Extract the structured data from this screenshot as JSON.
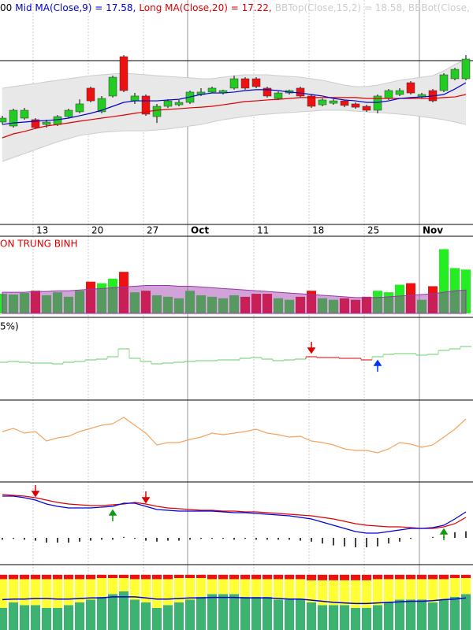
{
  "chart_data": [
    {
      "type": "candlestick",
      "title": "00",
      "categories": [
        null,
        null,
        null,
        "13",
        null,
        null,
        null,
        null,
        "20",
        null,
        null,
        null,
        null,
        "27",
        null,
        null,
        null,
        "Oct",
        null,
        null,
        null,
        null,
        null,
        "11",
        null,
        null,
        null,
        null,
        "18",
        null,
        null,
        null,
        null,
        "25",
        null,
        null,
        null,
        null,
        "Nov",
        null,
        null,
        null,
        null
      ],
      "open": [
        16.12,
        15.94,
        16.3,
        16.23,
        16.01,
        16.01,
        16.37,
        16.59,
        17.67,
        16.59,
        17.31,
        19.11,
        17.09,
        17.31,
        16.37,
        16.84,
        16.91,
        17.02,
        17.38,
        17.49,
        17.45,
        17.67,
        18.1,
        18.1,
        17.67,
        17.2,
        17.45,
        17.67,
        17.31,
        16.91,
        16.98,
        17.09,
        16.95,
        16.84,
        16.66,
        17.2,
        17.38,
        17.92,
        17.27,
        17.56,
        17.56,
        18.1,
        18.1
      ],
      "high": [
        16.41,
        16.73,
        16.77,
        16.3,
        16.23,
        16.44,
        16.73,
        17.16,
        17.74,
        17.31,
        18.24,
        19.18,
        17.45,
        17.38,
        16.95,
        17.16,
        17.13,
        17.56,
        17.67,
        17.74,
        17.6,
        18.24,
        18.17,
        18.17,
        17.74,
        17.52,
        17.6,
        17.74,
        17.38,
        17.2,
        17.16,
        17.13,
        17.02,
        16.91,
        17.38,
        17.63,
        17.67,
        17.99,
        17.45,
        17.63,
        18.35,
        18.6,
        19.18
      ],
      "low": [
        16.01,
        15.87,
        16.23,
        15.8,
        15.87,
        15.94,
        16.3,
        16.52,
        17.02,
        16.52,
        17.24,
        17.49,
        16.95,
        16.41,
        16.08,
        16.77,
        16.84,
        16.95,
        17.31,
        17.45,
        17.38,
        17.6,
        17.6,
        17.67,
        17.24,
        17.13,
        17.38,
        17.24,
        16.77,
        16.84,
        16.91,
        16.8,
        16.73,
        16.59,
        16.52,
        17.13,
        17.31,
        17.38,
        17.2,
        17.02,
        17.49,
        18.03,
        18.03
      ],
      "close": [
        16.3,
        16.66,
        16.66,
        15.87,
        16.12,
        16.37,
        16.66,
        16.95,
        17.09,
        17.2,
        18.17,
        17.56,
        17.31,
        16.48,
        16.84,
        17.09,
        17.02,
        17.49,
        17.49,
        17.67,
        17.56,
        18.1,
        17.67,
        17.74,
        17.31,
        17.45,
        17.56,
        17.31,
        16.84,
        17.13,
        17.09,
        16.88,
        16.8,
        16.66,
        17.31,
        17.56,
        17.56,
        17.45,
        17.38,
        17.09,
        18.28,
        18.53,
        19.0
      ],
      "up_color": "#22cc22",
      "down_color": "#ee1111",
      "ylim": [
        11.44,
        21.7
      ],
      "band_fill": "#e8e8e8",
      "series": [
        {
          "name": "Mid MA(Close,9) = 17.58,",
          "color": "#0000cc",
          "values": [
            16.01,
            16.08,
            16.12,
            16.16,
            16.19,
            16.23,
            16.3,
            16.41,
            16.52,
            16.66,
            16.84,
            17.02,
            17.09,
            17.09,
            17.09,
            17.13,
            17.16,
            17.27,
            17.38,
            17.45,
            17.45,
            17.49,
            17.56,
            17.6,
            17.6,
            17.56,
            17.49,
            17.45,
            17.38,
            17.31,
            17.2,
            17.13,
            17.09,
            17.02,
            17.02,
            17.09,
            17.2,
            17.24,
            17.27,
            17.31,
            17.38,
            17.63,
            17.92
          ]
        },
        {
          "name": "Long MA(Close,20) = 17.22,",
          "color": "#dd0000",
          "values": [
            15.4,
            15.58,
            15.69,
            15.83,
            15.94,
            16.01,
            16.08,
            16.16,
            16.23,
            16.3,
            16.37,
            16.44,
            16.52,
            16.59,
            16.66,
            16.7,
            16.73,
            16.77,
            16.8,
            16.84,
            16.91,
            16.98,
            17.06,
            17.09,
            17.13,
            17.16,
            17.2,
            17.24,
            17.24,
            17.24,
            17.24,
            17.24,
            17.24,
            17.2,
            17.2,
            17.2,
            17.2,
            17.2,
            17.2,
            17.2,
            17.24,
            17.27,
            17.38
          ]
        },
        {
          "name": "BBTop(Close,15,2) = 18.58,",
          "color": "#cccccc",
          "values": [
            17.67,
            17.74,
            17.81,
            17.88,
            17.96,
            18.03,
            18.1,
            18.17,
            18.24,
            18.28,
            18.32,
            18.35,
            18.32,
            18.28,
            18.24,
            18.21,
            18.17,
            18.14,
            18.1,
            18.1,
            18.17,
            18.24,
            18.28,
            18.28,
            18.28,
            18.24,
            18.21,
            18.17,
            18.1,
            18.03,
            17.92,
            17.81,
            17.74,
            17.74,
            17.81,
            17.92,
            18.03,
            18.1,
            18.17,
            18.24,
            18.46,
            18.75,
            19.0
          ]
        },
        {
          "name": "BBBot(Close,",
          "color": "#cccccc",
          "values": [
            14.32,
            14.5,
            14.68,
            14.86,
            15.04,
            15.22,
            15.36,
            15.51,
            15.58,
            15.65,
            15.69,
            15.72,
            15.72,
            15.72,
            15.76,
            15.8,
            15.87,
            15.94,
            16.01,
            16.12,
            16.23,
            16.3,
            16.37,
            16.44,
            16.48,
            16.52,
            16.55,
            16.59,
            16.62,
            16.66,
            16.66,
            16.66,
            16.62,
            16.59,
            16.55,
            16.52,
            16.48,
            16.44,
            16.37,
            16.3,
            16.23,
            16.12,
            16.01
          ]
        }
      ]
    },
    {
      "type": "bar",
      "title": "ON TRUNG BINH",
      "title_color": "#dd0000",
      "values": [
        26,
        25,
        27,
        30,
        24,
        28,
        22,
        30,
        42,
        40,
        46,
        55,
        28,
        30,
        24,
        22,
        20,
        30,
        24,
        22,
        20,
        24,
        22,
        26,
        26,
        20,
        18,
        22,
        30,
        20,
        18,
        20,
        18,
        22,
        30,
        28,
        38,
        40,
        18,
        36,
        85,
        60,
        58
      ],
      "up_color": "#22ee22",
      "down_color": "#ee1111",
      "ma_values": [
        28,
        28,
        28,
        29,
        29,
        30,
        30,
        31,
        32,
        33,
        34,
        35,
        36,
        37,
        37,
        37,
        36,
        36,
        35,
        34,
        33,
        32,
        31,
        30,
        29,
        28,
        27,
        26,
        25,
        24,
        23,
        22,
        21,
        21,
        21,
        22,
        23,
        24,
        25,
        26,
        28,
        30,
        31
      ],
      "ma_color": "#9933aa",
      "ylim": [
        0,
        100
      ]
    },
    {
      "type": "step",
      "title": "5%)",
      "values": [
        45,
        46,
        45,
        44,
        44,
        43,
        45,
        46,
        48,
        49,
        52,
        62,
        50,
        46,
        43,
        44,
        45,
        46,
        47,
        47,
        48,
        48,
        50,
        51,
        49,
        47,
        48,
        49,
        52,
        51,
        51,
        50,
        50,
        48,
        52,
        55,
        56,
        56,
        54,
        55,
        60,
        62,
        65
      ],
      "color": "#66cc66",
      "highlight": {
        "start": 28,
        "end": 33,
        "color": "#dd0000"
      },
      "signals": [
        {
          "index": 28,
          "direction": "down",
          "color": "#dd0000"
        },
        {
          "index": 34,
          "direction": "up",
          "color": "#0033ff"
        }
      ],
      "ylim": [
        0,
        100
      ]
    },
    {
      "type": "line",
      "series": [
        {
          "color": "#f4a460",
          "values": [
            62,
            66,
            60,
            62,
            50,
            54,
            56,
            62,
            66,
            70,
            72,
            80,
            70,
            60,
            45,
            48,
            48,
            52,
            55,
            60,
            58,
            60,
            62,
            65,
            60,
            58,
            55,
            56,
            50,
            48,
            45,
            40,
            38,
            38,
            35,
            40,
            48,
            46,
            42,
            45,
            55,
            65,
            78
          ]
        }
      ],
      "ylim": [
        0,
        100
      ]
    },
    {
      "type": "line",
      "series": [
        {
          "color": "#dd0000",
          "values": [
            87,
            86,
            85,
            83,
            80,
            77,
            75,
            74,
            73,
            73,
            74,
            75,
            77,
            75,
            72,
            70,
            69,
            68,
            67,
            67,
            66,
            66,
            65,
            65,
            64,
            63,
            62,
            61,
            60,
            58,
            56,
            53,
            50,
            48,
            47,
            46,
            46,
            45,
            44,
            44,
            46,
            50,
            58
          ]
        },
        {
          "color": "#0000dd",
          "values": [
            85,
            85,
            83,
            80,
            75,
            72,
            70,
            70,
            70,
            71,
            72,
            76,
            76,
            72,
            68,
            67,
            66,
            66,
            66,
            66,
            65,
            64,
            64,
            63,
            62,
            61,
            60,
            58,
            56,
            52,
            48,
            44,
            40,
            38,
            38,
            40,
            42,
            44,
            44,
            45,
            48,
            56,
            65
          ]
        }
      ],
      "histogram": [
        -2,
        -1,
        -2,
        -3,
        -5,
        -5,
        -5,
        -4,
        -3,
        -2,
        -2,
        1,
        -1,
        -3,
        -4,
        -3,
        -3,
        -2,
        -1,
        -1,
        -1,
        -2,
        -1,
        -2,
        -2,
        -2,
        -2,
        -3,
        -4,
        -6,
        -8,
        -9,
        -10,
        -10,
        -9,
        -6,
        -4,
        -1,
        0,
        1,
        2,
        6,
        7
      ],
      "histogram_color": "#000000",
      "signals": [
        {
          "index": 3,
          "direction": "down",
          "color": "#dd0000"
        },
        {
          "index": 10,
          "direction": "up",
          "color": "#119911"
        },
        {
          "index": 13,
          "direction": "down",
          "color": "#dd0000"
        },
        {
          "index": 40,
          "direction": "up",
          "color": "#119911"
        }
      ],
      "ylim": [
        0,
        100
      ]
    },
    {
      "type": "stacked_bar",
      "series": [
        {
          "color": "#3cb371",
          "values": [
            40,
            50,
            45,
            45,
            40,
            40,
            45,
            50,
            55,
            60,
            65,
            70,
            55,
            50,
            40,
            45,
            50,
            55,
            60,
            65,
            65,
            65,
            60,
            60,
            60,
            55,
            55,
            55,
            50,
            45,
            45,
            45,
            40,
            40,
            45,
            50,
            55,
            55,
            55,
            50,
            55,
            60,
            65
          ]
        },
        {
          "color": "#ffff33",
          "values": [
            52,
            42,
            47,
            47,
            52,
            52,
            47,
            42,
            37,
            34,
            29,
            24,
            37,
            42,
            52,
            47,
            44,
            39,
            34,
            27,
            27,
            27,
            32,
            32,
            32,
            37,
            37,
            37,
            40,
            45,
            45,
            45,
            50,
            50,
            47,
            42,
            37,
            37,
            37,
            42,
            37,
            34,
            29
          ]
        },
        {
          "color": "#ee1111",
          "values": [
            8,
            8,
            8,
            8,
            8,
            8,
            8,
            8,
            8,
            6,
            6,
            6,
            8,
            8,
            8,
            8,
            6,
            6,
            6,
            8,
            8,
            8,
            8,
            8,
            8,
            8,
            8,
            8,
            10,
            10,
            10,
            10,
            10,
            10,
            8,
            8,
            8,
            8,
            8,
            8,
            8,
            6,
            6
          ]
        }
      ],
      "line": {
        "color": "#0000cc",
        "values": [
          55,
          56,
          56,
          57,
          57,
          56,
          56,
          57,
          58,
          58,
          60,
          60,
          60,
          58,
          56,
          56,
          57,
          58,
          58,
          59,
          59,
          59,
          58,
          58,
          58,
          57,
          56,
          56,
          54,
          52,
          50,
          49,
          48,
          48,
          49,
          50,
          51,
          52,
          52,
          53,
          55,
          56,
          58
        ]
      },
      "ylim": [
        0,
        114
      ]
    }
  ]
}
